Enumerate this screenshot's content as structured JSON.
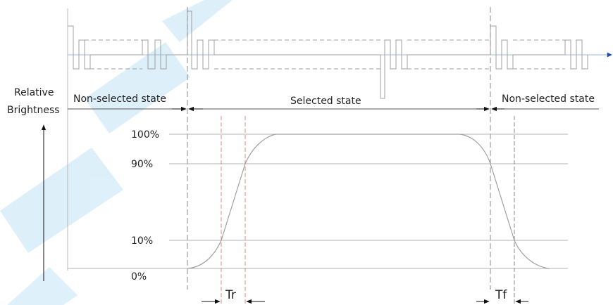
{
  "y_axis": {
    "label_line1": "Relative",
    "label_line2": "Brightness"
  },
  "states": {
    "left": "Non-selected state",
    "middle": "Selected state",
    "right": "Non-selected state"
  },
  "levels": [
    {
      "id": "full",
      "label": "100%",
      "value": 100
    },
    {
      "id": "ninety",
      "label": "90%",
      "value": 90
    },
    {
      "id": "ten",
      "label": "10%",
      "value": 10
    },
    {
      "id": "zero",
      "label": "0%",
      "value": 0
    }
  ],
  "timing": {
    "rise": "Tr",
    "fall": "Tf"
  },
  "colors": {
    "line": "#a0a0a0",
    "dash": "#8a8a8a",
    "rise_marker": "#e08888",
    "axis_arrow": "#1f4fa0",
    "watermark": "#b5ddf2"
  }
}
